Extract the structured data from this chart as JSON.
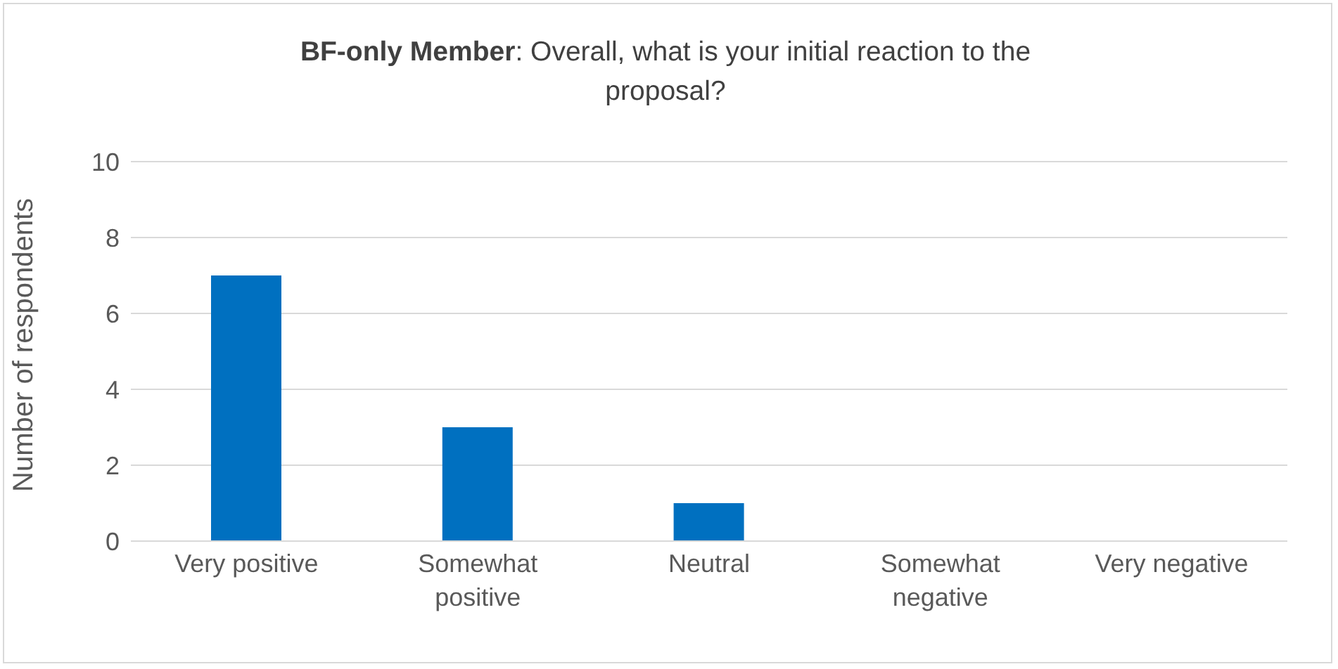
{
  "chart_data": {
    "type": "bar",
    "title": "BF-only Member: Overall, what is your initial reaction to the proposal?",
    "ylabel": "Number of respondents",
    "categories": [
      "Very positive",
      "Somewhat positive",
      "Neutral",
      "Somewhat negative",
      "Very negative"
    ],
    "values": [
      7,
      3,
      1,
      0,
      0
    ],
    "color": "#0070c0",
    "ylim": [
      0,
      10
    ],
    "yticks": [
      0,
      2,
      4,
      6,
      8,
      10
    ],
    "grid": "y",
    "legend": false
  }
}
